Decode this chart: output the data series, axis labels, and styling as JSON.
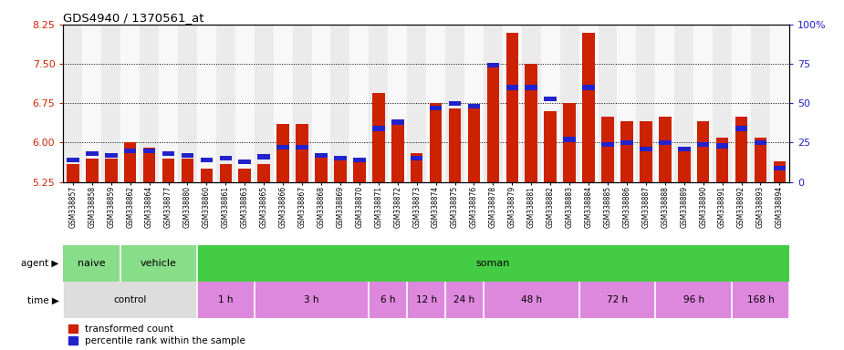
{
  "title": "GDS4940 / 1370561_at",
  "samples": [
    "GSM338857",
    "GSM338858",
    "GSM338859",
    "GSM338862",
    "GSM338864",
    "GSM338877",
    "GSM338880",
    "GSM338860",
    "GSM338861",
    "GSM338863",
    "GSM338865",
    "GSM338866",
    "GSM338867",
    "GSM338868",
    "GSM338869",
    "GSM338870",
    "GSM338871",
    "GSM338872",
    "GSM338873",
    "GSM338874",
    "GSM338875",
    "GSM338876",
    "GSM338878",
    "GSM338879",
    "GSM338881",
    "GSM338882",
    "GSM338883",
    "GSM338884",
    "GSM338885",
    "GSM338886",
    "GSM338887",
    "GSM338888",
    "GSM338889",
    "GSM338890",
    "GSM338891",
    "GSM338892",
    "GSM338893",
    "GSM338894"
  ],
  "transformed_count": [
    5.6,
    5.7,
    5.7,
    6.0,
    5.9,
    5.7,
    5.7,
    5.5,
    5.6,
    5.5,
    5.6,
    6.35,
    6.35,
    5.8,
    5.7,
    5.65,
    6.95,
    6.4,
    5.8,
    6.75,
    6.65,
    6.7,
    7.5,
    8.1,
    7.5,
    6.6,
    6.75,
    8.1,
    6.5,
    6.4,
    6.4,
    6.5,
    5.9,
    6.4,
    6.1,
    6.5,
    6.1,
    5.65
  ],
  "percentile": [
    14,
    18,
    17,
    20,
    20,
    18,
    17,
    14,
    15,
    13,
    16,
    22,
    22,
    17,
    15,
    14,
    34,
    38,
    15,
    47,
    50,
    48,
    74,
    60,
    60,
    53,
    27,
    60,
    24,
    25,
    21,
    25,
    21,
    24,
    23,
    34,
    25,
    9
  ],
  "ylim_left": [
    5.25,
    8.25
  ],
  "ylim_right": [
    0,
    100
  ],
  "yticks_left": [
    5.25,
    6.0,
    6.75,
    7.5,
    8.25
  ],
  "yticks_right": [
    0,
    25,
    50,
    75,
    100
  ],
  "bar_color": "#cc2200",
  "blue_color": "#2222cc",
  "agent_spans": [
    {
      "label": "naive",
      "start": 0,
      "end": 3,
      "color": "#88dd88"
    },
    {
      "label": "vehicle",
      "start": 3,
      "end": 7,
      "color": "#88dd88"
    },
    {
      "label": "soman",
      "start": 7,
      "end": 38,
      "color": "#44cc44"
    }
  ],
  "time_spans": [
    {
      "label": "control",
      "start": 0,
      "end": 7,
      "color": "#dddddd"
    },
    {
      "label": "1 h",
      "start": 7,
      "end": 10,
      "color": "#dd88dd"
    },
    {
      "label": "3 h",
      "start": 10,
      "end": 16,
      "color": "#dd88dd"
    },
    {
      "label": "6 h",
      "start": 16,
      "end": 18,
      "color": "#dd88dd"
    },
    {
      "label": "12 h",
      "start": 18,
      "end": 20,
      "color": "#dd88dd"
    },
    {
      "label": "24 h",
      "start": 20,
      "end": 22,
      "color": "#dd88dd"
    },
    {
      "label": "48 h",
      "start": 22,
      "end": 27,
      "color": "#dd88dd"
    },
    {
      "label": "72 h",
      "start": 27,
      "end": 31,
      "color": "#dd88dd"
    },
    {
      "label": "96 h",
      "start": 31,
      "end": 35,
      "color": "#dd88dd"
    },
    {
      "label": "168 h",
      "start": 35,
      "end": 38,
      "color": "#dd88dd"
    }
  ],
  "fig_bgcolor": "#ffffff",
  "plot_bgcolor": "#ffffff",
  "grid_color": "#000000",
  "spine_color": "#000000"
}
